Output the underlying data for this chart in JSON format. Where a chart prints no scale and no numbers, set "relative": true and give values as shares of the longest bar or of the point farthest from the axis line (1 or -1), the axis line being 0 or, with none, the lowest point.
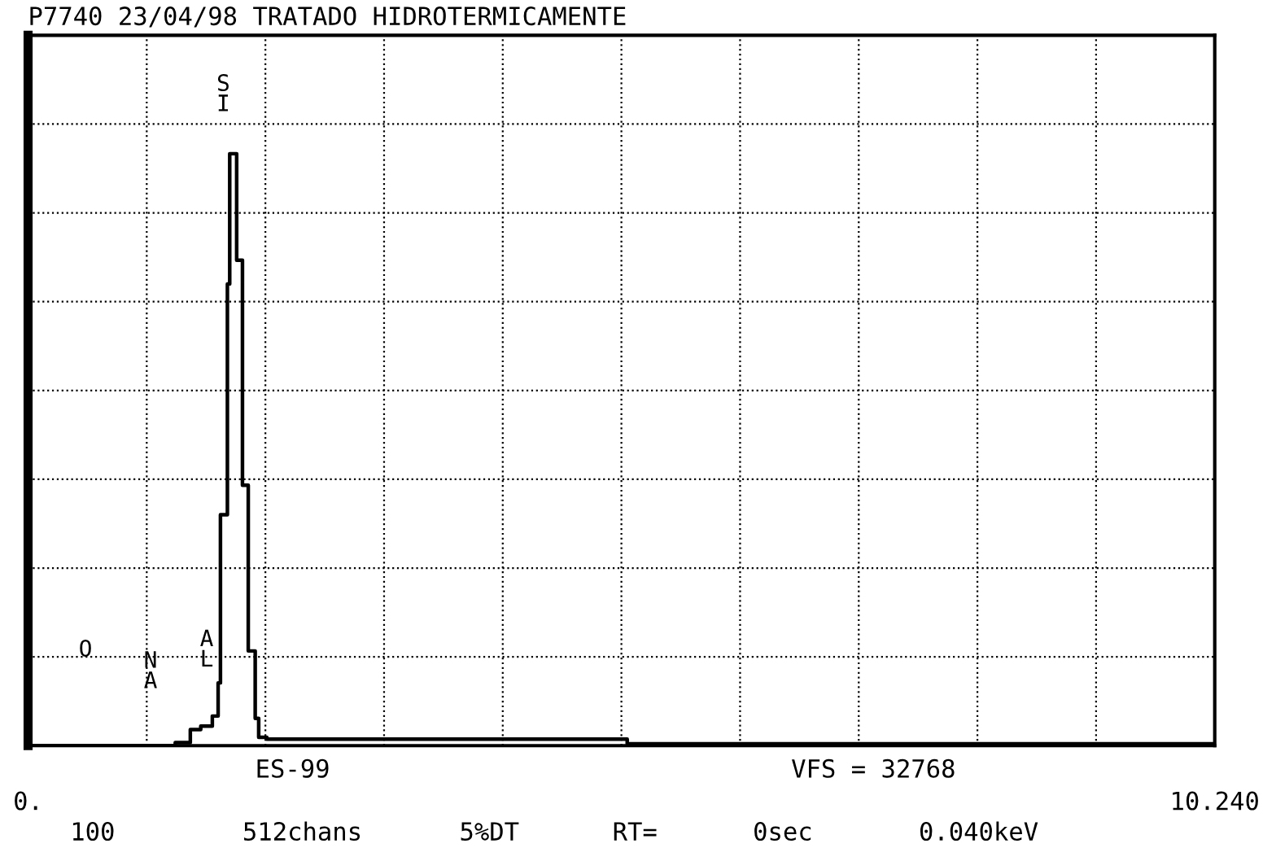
{
  "chart_data": {
    "type": "step",
    "title": "P7740 23/04/98 TRATADO HIDROTERMICAMENTE",
    "relative": true,
    "x": [
      0,
      1.27,
      1.4,
      1.49,
      1.59,
      1.64,
      1.66,
      1.72,
      1.74,
      1.8,
      1.85,
      1.9,
      1.96,
      1.99,
      2.06,
      5.17,
      10.24
    ],
    "series": [
      {
        "color": "#000000",
        "values": [
          0,
          0.005,
          0.027,
          0.033,
          0.05,
          0.106,
          0.39,
          0.78,
          1.0,
          0.82,
          0.44,
          0.16,
          0.046,
          0.014,
          0.011,
          0.003,
          0.003
        ]
      }
    ],
    "xlim": [
      0,
      10.24
    ],
    "xticks": [
      {
        "value": 0,
        "label": "0."
      },
      {
        "value": 10.24,
        "label": "10.240"
      }
    ],
    "grid": true,
    "line_style": "solid",
    "marker": "none",
    "annotations": [
      "O",
      "NA",
      "AL",
      "SI",
      "ES-99",
      "VFS = 32768",
      "100",
      "512chans",
      "5%DT",
      "RT=",
      "0sec",
      "0.040keV"
    ]
  }
}
